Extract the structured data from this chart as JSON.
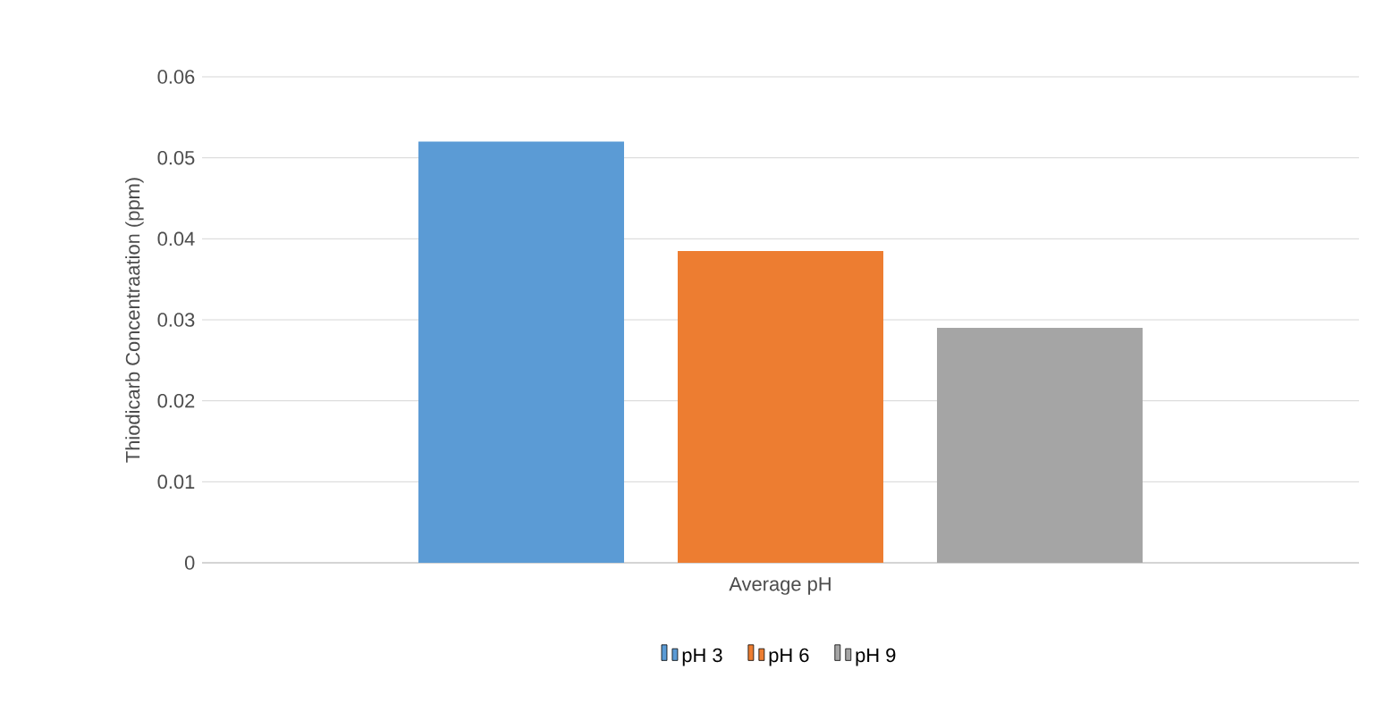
{
  "chart_data": {
    "type": "bar",
    "ylabel": "Thiodicarb Concentraation (ppm)",
    "categories": [
      "Average pH"
    ],
    "series": [
      {
        "name": "pH 3",
        "color": "#5b9bd5",
        "values": [
          0.052
        ]
      },
      {
        "name": "pH 6",
        "color": "#ed7d31",
        "values": [
          0.0385
        ]
      },
      {
        "name": "pH 9",
        "color": "#a5a5a5",
        "values": [
          0.029
        ]
      }
    ],
    "ylim": [
      0,
      0.06
    ],
    "yticks": [
      0,
      0.01,
      0.02,
      0.03,
      0.04,
      0.05,
      0.06
    ],
    "grid": "y",
    "legend": "bottom"
  }
}
